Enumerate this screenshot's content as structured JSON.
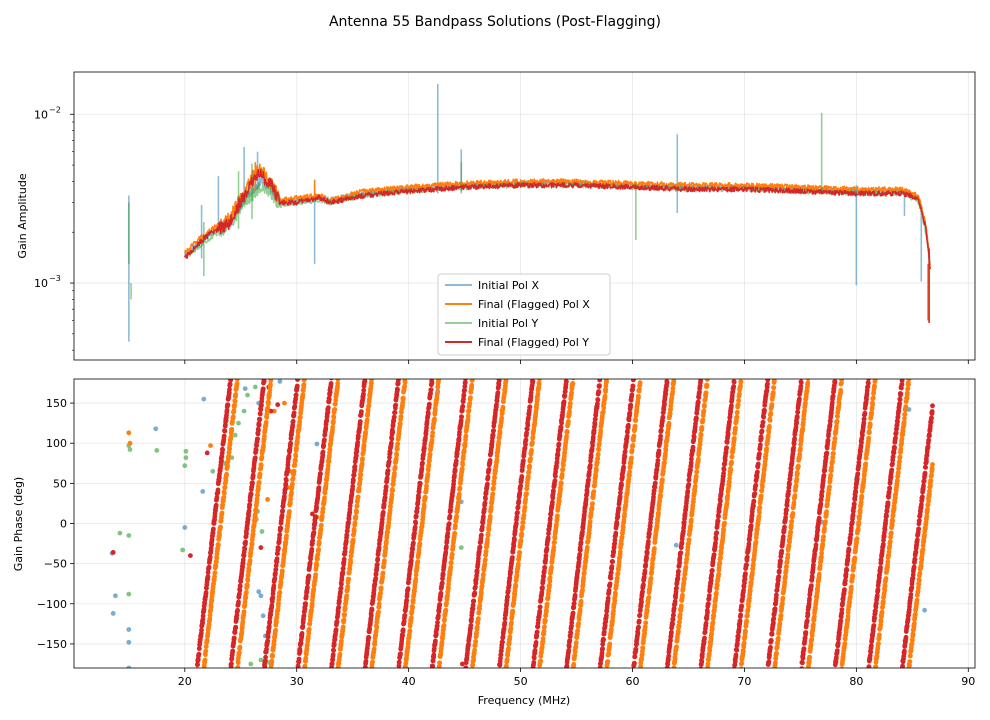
{
  "chart_data": [
    {
      "type": "line",
      "title": "Antenna 55 Bandpass Solutions (Post-Flagging)",
      "ylabel": "Gain Amplitude",
      "xlabel": "",
      "yscale": "log",
      "xlim": [
        10.1,
        90.6
      ],
      "ylim": [
        0.00035,
        0.0178
      ],
      "grid": true,
      "x_ticks": [
        20,
        30,
        40,
        50,
        60,
        70,
        80,
        90
      ],
      "y_ticks": [
        {
          "value": 0.01,
          "base": "10",
          "exp": "−2"
        },
        {
          "value": 0.001,
          "base": "10",
          "exp": "−3"
        }
      ],
      "legend_position": "lower-center",
      "series": [
        {
          "name": "Initial Pol X",
          "color": "#1f77b4",
          "opacity": 0.5,
          "baseline": [
            [
              20.0,
              0.00145
            ],
            [
              22.0,
              0.0019
            ],
            [
              24.0,
              0.0023
            ],
            [
              25.5,
              0.0033
            ],
            [
              27.0,
              0.0042
            ],
            [
              27.8,
              0.0036
            ],
            [
              28.5,
              0.003
            ],
            [
              30.0,
              0.0031
            ],
            [
              32.0,
              0.0032
            ],
            [
              33.0,
              0.0031
            ],
            [
              36.0,
              0.0034
            ],
            [
              40.0,
              0.0036
            ],
            [
              45.0,
              0.0038
            ],
            [
              50.0,
              0.0039
            ],
            [
              55.0,
              0.0039
            ],
            [
              60.0,
              0.0038
            ],
            [
              65.0,
              0.0037
            ],
            [
              70.0,
              0.0037
            ],
            [
              75.0,
              0.0036
            ],
            [
              80.0,
              0.0035
            ],
            [
              84.0,
              0.0035
            ],
            [
              85.5,
              0.0032
            ],
            [
              86.2,
              0.0021
            ],
            [
              86.6,
              0.0013
            ]
          ],
          "spikes": [
            [
              15.0,
              0.00045,
              0.0033
            ],
            [
              21.5,
              0.0014,
              0.0029
            ],
            [
              23.0,
              0.0021,
              0.0043
            ],
            [
              25.3,
              0.0031,
              0.0064
            ],
            [
              26.5,
              0.0036,
              0.006
            ],
            [
              31.6,
              0.0013,
              0.0038
            ],
            [
              42.6,
              0.0034,
              0.0151
            ],
            [
              44.7,
              0.0034,
              0.0062
            ],
            [
              64.0,
              0.0026,
              0.0076
            ],
            [
              80.0,
              0.00097,
              0.0038
            ],
            [
              84.3,
              0.0025,
              0.0036
            ],
            [
              85.8,
              0.00102,
              0.0026
            ]
          ]
        },
        {
          "name": "Final (Flagged) Pol X",
          "color": "#ff7f0e",
          "opacity": 1,
          "baseline": [
            [
              20.0,
              0.0015
            ],
            [
              22.0,
              0.002
            ],
            [
              24.0,
              0.0024
            ],
            [
              25.5,
              0.0036
            ],
            [
              26.5,
              0.0048
            ],
            [
              27.5,
              0.0042
            ],
            [
              28.5,
              0.0031
            ],
            [
              30.0,
              0.0032
            ],
            [
              32.0,
              0.0033
            ],
            [
              33.0,
              0.0031
            ],
            [
              36.0,
              0.0035
            ],
            [
              40.0,
              0.0037
            ],
            [
              45.0,
              0.0039
            ],
            [
              50.0,
              0.004
            ],
            [
              55.0,
              0.004
            ],
            [
              60.0,
              0.0039
            ],
            [
              65.0,
              0.0038
            ],
            [
              70.0,
              0.0038
            ],
            [
              75.0,
              0.0037
            ],
            [
              80.0,
              0.0036
            ],
            [
              84.0,
              0.0036
            ],
            [
              85.5,
              0.0033
            ],
            [
              86.2,
              0.0022
            ],
            [
              86.6,
              0.00125
            ]
          ],
          "spikes": [
            [
              26.3,
              0.0035,
              0.0052
            ],
            [
              31.6,
              0.0032,
              0.0041
            ],
            [
              86.4,
              0.0006,
              0.0013
            ]
          ]
        },
        {
          "name": "Initial Pol Y",
          "color": "#2ca02c",
          "opacity": 0.5,
          "baseline": [
            [
              20.0,
              0.0014
            ],
            [
              22.0,
              0.0018
            ],
            [
              24.0,
              0.0022
            ],
            [
              25.5,
              0.0031
            ],
            [
              27.0,
              0.0038
            ],
            [
              27.8,
              0.0033
            ],
            [
              28.5,
              0.0029
            ],
            [
              30.0,
              0.003
            ],
            [
              32.0,
              0.0031
            ],
            [
              33.0,
              0.003
            ],
            [
              36.0,
              0.0033
            ],
            [
              40.0,
              0.0035
            ],
            [
              45.0,
              0.0037
            ],
            [
              50.0,
              0.0038
            ],
            [
              55.0,
              0.0038
            ],
            [
              60.0,
              0.0037
            ],
            [
              65.0,
              0.0036
            ],
            [
              70.0,
              0.0036
            ],
            [
              75.0,
              0.0035
            ],
            [
              80.0,
              0.0034
            ],
            [
              84.0,
              0.0034
            ],
            [
              85.5,
              0.0031
            ],
            [
              86.2,
              0.002
            ],
            [
              86.6,
              0.0012
            ]
          ],
          "spikes": [
            [
              15.0,
              0.0013,
              0.003
            ],
            [
              15.2,
              0.0008,
              0.001
            ],
            [
              21.7,
              0.0011,
              0.0023
            ],
            [
              24.8,
              0.0021,
              0.0046
            ],
            [
              26.0,
              0.0024,
              0.0051
            ],
            [
              44.7,
              0.0035,
              0.0052
            ],
            [
              60.3,
              0.0018,
              0.0039
            ],
            [
              76.9,
              0.0036,
              0.0102
            ]
          ]
        },
        {
          "name": "Final (Flagged) Pol Y",
          "color": "#d62728",
          "opacity": 1,
          "baseline": [
            [
              20.0,
              0.0014
            ],
            [
              22.0,
              0.0019
            ],
            [
              24.0,
              0.0023
            ],
            [
              25.5,
              0.0034
            ],
            [
              26.5,
              0.0045
            ],
            [
              27.5,
              0.004
            ],
            [
              28.5,
              0.003
            ],
            [
              30.0,
              0.003
            ],
            [
              32.0,
              0.0032
            ],
            [
              33.0,
              0.003
            ],
            [
              36.0,
              0.0033
            ],
            [
              40.0,
              0.0035
            ],
            [
              45.0,
              0.0037
            ],
            [
              50.0,
              0.0038
            ],
            [
              55.0,
              0.0038
            ],
            [
              60.0,
              0.0037
            ],
            [
              65.0,
              0.0036
            ],
            [
              70.0,
              0.0036
            ],
            [
              75.0,
              0.0035
            ],
            [
              80.0,
              0.0034
            ],
            [
              84.0,
              0.0034
            ],
            [
              85.5,
              0.0032
            ],
            [
              86.2,
              0.0021
            ],
            [
              86.6,
              0.0012
            ]
          ],
          "spikes": [
            [
              86.5,
              0.00058,
              0.0016
            ]
          ]
        }
      ]
    },
    {
      "type": "scatter",
      "ylabel": "Gain Phase (deg)",
      "xlabel": "Frequency (MHz)",
      "xlim": [
        10.1,
        90.6
      ],
      "ylim": [
        -180,
        180
      ],
      "grid": true,
      "x_ticks": [
        20,
        30,
        40,
        50,
        60,
        70,
        80,
        90
      ],
      "y_ticks": [
        150,
        100,
        50,
        0,
        -50,
        -100,
        -150
      ],
      "marker_color_order": [
        "#1f77b4",
        "#2ca02c",
        "#ff7f0e",
        "#d62728"
      ],
      "wrapped_phase_ramps": [
        {
          "series": "Final (Flagged) Pol Y",
          "color": "#d62728",
          "x_start": 21.1,
          "x_end": 86.8,
          "degrees_per_mhz": 120,
          "phase_at_start": -180
        },
        {
          "series": "Final (Flagged) Pol X",
          "color": "#ff7f0e",
          "x_start": 21.7,
          "x_end": 86.8,
          "degrees_per_mhz": 120,
          "phase_at_start": -180
        }
      ],
      "scatter_points": [
        {
          "series": "Initial Pol Y",
          "color": "#2ca02c",
          "points": [
            [
              14.2,
              -12
            ],
            [
              15.0,
              -15
            ],
            [
              15.0,
              97
            ],
            [
              15.1,
              92
            ],
            [
              15.0,
              -88
            ],
            [
              17.5,
              91
            ],
            [
              19.8,
              -33
            ],
            [
              20.0,
              72
            ],
            [
              20.1,
              82
            ],
            [
              20.1,
              90
            ],
            [
              22.5,
              65
            ],
            [
              23.6,
              75
            ],
            [
              24.2,
              82
            ],
            [
              24.5,
              110
            ],
            [
              24.8,
              125
            ],
            [
              25.3,
              140
            ],
            [
              25.6,
              160
            ],
            [
              26.4,
              5
            ],
            [
              26.5,
              15
            ],
            [
              26.9,
              -10
            ],
            [
              27.2,
              -160
            ],
            [
              27.4,
              -173
            ],
            [
              26.8,
              -170
            ],
            [
              25.9,
              -175
            ],
            [
              26.3,
              170
            ],
            [
              44.7,
              -30
            ]
          ]
        },
        {
          "series": "Initial Pol X",
          "color": "#1f77b4",
          "points": [
            [
              13.5,
              -37
            ],
            [
              13.8,
              -90
            ],
            [
              13.6,
              -112
            ],
            [
              15.0,
              -132
            ],
            [
              15.0,
              -148
            ],
            [
              15.0,
              -180
            ],
            [
              17.4,
              118
            ],
            [
              20.0,
              -5
            ],
            [
              21.6,
              40
            ],
            [
              21.7,
              155
            ],
            [
              25.4,
              168
            ],
            [
              26.6,
              150
            ],
            [
              26.8,
              -90
            ],
            [
              26.6,
              -85
            ],
            [
              27.0,
              -115
            ],
            [
              27.2,
              -140
            ],
            [
              27.5,
              160
            ],
            [
              28.5,
              177
            ],
            [
              31.8,
              99
            ],
            [
              42.6,
              165
            ],
            [
              44.7,
              27
            ],
            [
              63.9,
              -27
            ],
            [
              76.9,
              2
            ],
            [
              80.0,
              55
            ],
            [
              84.7,
              142
            ],
            [
              86.1,
              -108
            ]
          ]
        },
        {
          "series": "Final (Flagged) Pol X",
          "color": "#ff7f0e",
          "points": [
            [
              15.0,
              113
            ],
            [
              15.1,
              100
            ],
            [
              22.3,
              97
            ],
            [
              28.0,
              140
            ],
            [
              28.9,
              150
            ],
            [
              29.2,
              45
            ],
            [
              29.4,
              65
            ],
            [
              27.4,
              30
            ],
            [
              31.8,
              8
            ]
          ]
        },
        {
          "series": "Final (Flagged) Pol Y",
          "color": "#d62728",
          "points": [
            [
              13.6,
              -36
            ],
            [
              20.5,
              -40
            ],
            [
              22.0,
              88
            ],
            [
              26.8,
              -30
            ],
            [
              27.5,
              170
            ],
            [
              27.7,
              140
            ],
            [
              28.3,
              148
            ],
            [
              31.4,
              12
            ],
            [
              44.8,
              -175
            ]
          ]
        }
      ]
    }
  ]
}
